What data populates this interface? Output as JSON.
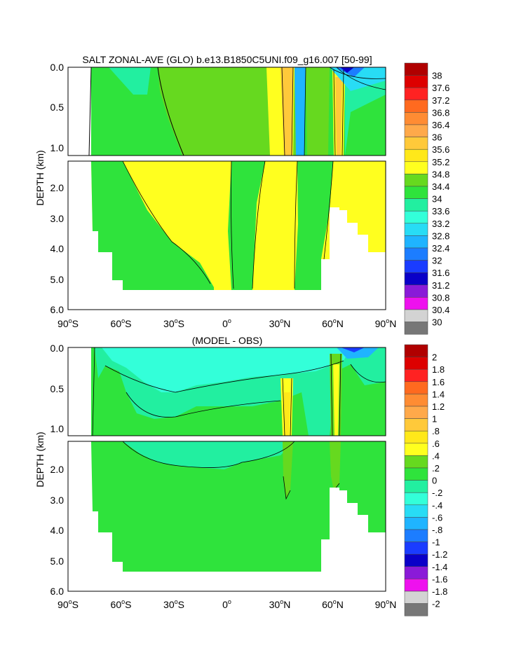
{
  "chart_data": [
    {
      "type": "heatmap",
      "title": "SALT ZONAL-AVE (GLO) b.e13.B1850C5UNI.f09_g16.007 [50-99]",
      "ylabel": "DEPTH (km)",
      "x_ticks": [
        {
          "deg": "90",
          "hemi": "S",
          "value": -90
        },
        {
          "deg": "60",
          "hemi": "S",
          "value": -60
        },
        {
          "deg": "30",
          "hemi": "S",
          "value": -30
        },
        {
          "deg": "0",
          "hemi": "",
          "value": 0
        },
        {
          "deg": "30",
          "hemi": "N",
          "value": 30
        },
        {
          "deg": "60",
          "hemi": "N",
          "value": 60
        },
        {
          "deg": "90",
          "hemi": "N",
          "value": 90
        }
      ],
      "y_ticks_upper": [
        "0.0",
        "0.5",
        "1.0"
      ],
      "y_ticks_lower": [
        "2.0",
        "3.0",
        "4.0",
        "5.0",
        "6.0"
      ],
      "colorbar": {
        "labels": [
          "38",
          "37.6",
          "37.2",
          "36.8",
          "36.4",
          "36",
          "35.6",
          "35.2",
          "34.8",
          "34.4",
          "34",
          "33.6",
          "33.2",
          "32.8",
          "32.4",
          "32",
          "31.6",
          "31.2",
          "30.8",
          "30.4",
          "30"
        ],
        "colors": [
          "#b00000",
          "#dd0000",
          "#ff2222",
          "#ff6a1f",
          "#ff8c33",
          "#ffa94a",
          "#ffc93a",
          "#ffe81a",
          "#ffff1f",
          "#66d91f",
          "#2fe33c",
          "#22efa0",
          "#33ffd9",
          "#28dcf5",
          "#1fb4ff",
          "#1c7dff",
          "#1a3cff",
          "#0a00c8",
          "#8a1ad8",
          "#ee11ee",
          "#d3d3d3",
          "#777777"
        ]
      },
      "depth_range_km": [
        0,
        6
      ],
      "lat_range": [
        -90,
        90
      ]
    },
    {
      "type": "heatmap",
      "title": "(MODEL - OBS)",
      "ylabel": "DEPTH (km)",
      "x_ticks": [
        {
          "deg": "90",
          "hemi": "S",
          "value": -90
        },
        {
          "deg": "60",
          "hemi": "S",
          "value": -60
        },
        {
          "deg": "30",
          "hemi": "S",
          "value": -30
        },
        {
          "deg": "0",
          "hemi": "",
          "value": 0
        },
        {
          "deg": "30",
          "hemi": "N",
          "value": 30
        },
        {
          "deg": "60",
          "hemi": "N",
          "value": 60
        },
        {
          "deg": "90",
          "hemi": "N",
          "value": 90
        }
      ],
      "y_ticks_upper": [
        "0.0",
        "0.5",
        "1.0"
      ],
      "y_ticks_lower": [
        "2.0",
        "3.0",
        "4.0",
        "5.0",
        "6.0"
      ],
      "colorbar": {
        "labels": [
          "2",
          "1.8",
          "1.6",
          "1.4",
          "1.2",
          "1",
          ".8",
          ".6",
          ".4",
          ".2",
          "0",
          "-.2",
          "-.4",
          "-.6",
          "-.8",
          "-1",
          "-1.2",
          "-1.4",
          "-1.6",
          "-1.8",
          "-2"
        ],
        "colors": [
          "#b00000",
          "#dd0000",
          "#ff2222",
          "#ff6a1f",
          "#ff8c33",
          "#ffa94a",
          "#ffc93a",
          "#ffe81a",
          "#ffff1f",
          "#66d91f",
          "#2fe33c",
          "#22efa0",
          "#33ffd9",
          "#28dcf5",
          "#1fb4ff",
          "#1c7dff",
          "#1a3cff",
          "#0a00c8",
          "#8a1ad8",
          "#ee11ee",
          "#d3d3d3",
          "#777777"
        ]
      },
      "depth_range_km": [
        0,
        6
      ],
      "lat_range": [
        -90,
        90
      ]
    }
  ]
}
